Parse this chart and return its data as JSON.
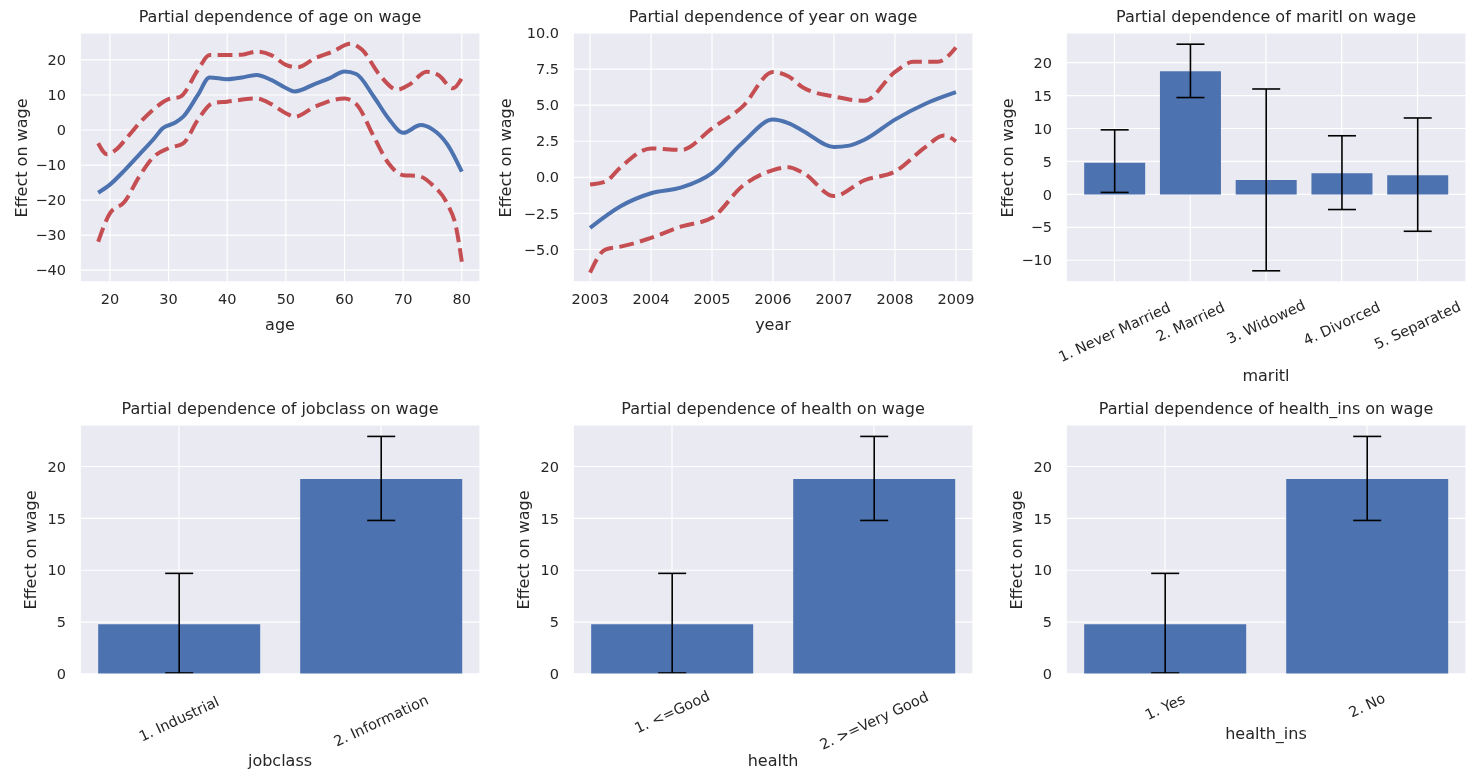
{
  "chart_data": [
    {
      "type": "line",
      "title": "Partial dependence of age on wage",
      "xlabel": "age",
      "ylabel": "Effect on wage",
      "xlim": [
        14.9,
        83.1
      ],
      "ylim": [
        -43.4,
        27.7
      ],
      "xticks": [
        20,
        30,
        40,
        50,
        60,
        70,
        80
      ],
      "yticks": [
        {
          "value": -40,
          "label": "−40"
        },
        {
          "value": -30,
          "label": "−30"
        },
        {
          "value": -20,
          "label": "−20"
        },
        {
          "value": -10,
          "label": "−10"
        },
        0,
        10,
        20
      ],
      "grid": true,
      "series": [
        {
          "color": "#4c72b0",
          "line_style": "solid",
          "x": [
            18,
            20,
            22.5,
            25,
            27.5,
            29,
            31,
            32.5,
            35,
            37,
            40,
            42.5,
            45,
            47.5,
            50,
            51.5,
            55,
            57.5,
            60,
            62,
            65,
            67.5,
            70,
            73,
            75,
            77.5,
            80
          ],
          "values": [
            -17.9,
            -15.6,
            -11.5,
            -7.0,
            -2.5,
            0.5,
            2.0,
            3.8,
            10.0,
            15.0,
            14.5,
            15.0,
            15.7,
            14.3,
            12.0,
            11.0,
            13.2,
            14.8,
            16.7,
            16.0,
            9.5,
            3.3,
            -0.8,
            1.4,
            0.2,
            -4.0,
            -11.9
          ]
        },
        {
          "color": "#c44e52",
          "line_style": "dashed",
          "x": [
            18,
            19.5,
            21,
            23,
            25,
            27.5,
            30,
            32,
            35,
            37,
            40,
            42.5,
            45,
            47.5,
            50,
            52,
            55,
            58,
            61,
            63,
            66,
            69,
            71,
            74,
            76,
            78.5,
            80
          ],
          "values": [
            -3.8,
            -6.9,
            -5.7,
            -2.0,
            1.9,
            6.0,
            8.8,
            9.5,
            17.1,
            21.4,
            21.4,
            21.5,
            22.4,
            21.4,
            18.6,
            17.9,
            20.5,
            22.4,
            24.6,
            22.9,
            15.7,
            11.5,
            12.9,
            16.6,
            15.7,
            11.9,
            14.8
          ]
        },
        {
          "color": "#c44e52",
          "line_style": "dashed",
          "x": [
            18,
            20,
            22.5,
            25,
            27.5,
            30,
            32.5,
            35,
            37.5,
            40,
            45,
            47.5,
            50,
            51.5,
            55,
            60,
            62,
            65,
            67.5,
            70,
            72.5,
            75,
            77.5,
            79,
            80
          ],
          "values": [
            -31.9,
            -23.8,
            -20.5,
            -13.3,
            -7.6,
            -5.2,
            -3.8,
            2.9,
            7.6,
            8.1,
            9.0,
            7.4,
            4.8,
            3.8,
            6.7,
            9.0,
            7.4,
            -1.9,
            -9.5,
            -12.9,
            -13.1,
            -15.7,
            -21.0,
            -27.6,
            -37.6
          ]
        }
      ]
    },
    {
      "type": "line",
      "title": "Partial dependence of year on wage",
      "xlabel": "year",
      "ylabel": "Effect on wage",
      "xlim": [
        2002.72,
        2009.28
      ],
      "ylim": [
        -7.25,
        10.0
      ],
      "xticks": [
        2003,
        2004,
        2005,
        2006,
        2007,
        2008,
        2009
      ],
      "yticks": [
        {
          "value": -5,
          "label": "−5.0"
        },
        {
          "value": -2.5,
          "label": "−2.5"
        },
        {
          "value": 0,
          "label": "0.0"
        },
        2.5,
        {
          "value": 5,
          "label": "5.0"
        },
        7.5,
        {
          "value": 10,
          "label": "10.0"
        }
      ],
      "grid": true,
      "series": [
        {
          "color": "#4c72b0",
          "line_style": "solid",
          "x": [
            2003,
            2003.5,
            2004,
            2004.5,
            2005,
            2005.5,
            2006,
            2006.25,
            2006.5,
            2007,
            2007.25,
            2007.5,
            2008,
            2008.5,
            2009
          ],
          "values": [
            -3.5,
            -2.0,
            -1.1,
            -0.7,
            0.3,
            2.4,
            4.0,
            3.75,
            3.2,
            2.1,
            2.2,
            2.6,
            4.0,
            5.1,
            5.9
          ]
        },
        {
          "color": "#c44e52",
          "line_style": "dashed",
          "x": [
            2003,
            2003.25,
            2003.5,
            2004,
            2004.5,
            2005,
            2005.5,
            2006,
            2006.25,
            2006.5,
            2007,
            2007.5,
            2008,
            2008.3,
            2008.7,
            2009
          ],
          "values": [
            -0.5,
            -0.3,
            0.7,
            2.0,
            1.9,
            3.4,
            4.9,
            7.3,
            7.0,
            6.2,
            5.6,
            5.3,
            7.3,
            8.0,
            8.0,
            9.0
          ]
        },
        {
          "color": "#c44e52",
          "line_style": "dashed",
          "x": [
            2003,
            2003.25,
            2003.5,
            2004,
            2004.5,
            2005,
            2005.5,
            2006,
            2006.25,
            2006.5,
            2007,
            2007.5,
            2008,
            2008.5,
            2008.8,
            2009
          ],
          "values": [
            -6.6,
            -5.0,
            -4.8,
            -4.2,
            -3.4,
            -2.8,
            -0.6,
            0.5,
            0.7,
            0.3,
            -1.3,
            -0.2,
            0.4,
            2.1,
            2.9,
            2.5
          ]
        }
      ]
    },
    {
      "type": "bar",
      "title": "Partial dependence of maritl on wage",
      "xlabel": "maritl",
      "ylabel": "Effect on wage",
      "categories": [
        "1. Never Married",
        "2. Married",
        "3. Widowed",
        "4. Divorced",
        "5. Separated"
      ],
      "values": [
        4.8,
        18.7,
        2.2,
        3.2,
        2.9
      ],
      "errors": [
        [
          0.3,
          9.8
        ],
        [
          14.7,
          22.8
        ],
        [
          -11.6,
          16.0
        ],
        [
          -2.3,
          8.9
        ],
        [
          -5.6,
          11.6
        ]
      ],
      "color": "#4c72b0",
      "ylim": [
        -13.3,
        24.5
      ],
      "yticks": [
        {
          "value": -10,
          "label": "−10"
        },
        {
          "value": -5,
          "label": "−5"
        },
        0,
        5,
        10,
        15,
        20
      ],
      "grid": true
    },
    {
      "type": "bar",
      "title": "Partial dependence of jobclass on wage",
      "xlabel": "jobclass",
      "ylabel": "Effect on wage",
      "categories": [
        "1. Industrial",
        "2. Information"
      ],
      "values": [
        4.8,
        18.8
      ],
      "errors": [
        [
          0.1,
          9.7
        ],
        [
          14.8,
          22.9
        ]
      ],
      "color": "#4c72b0",
      "ylim": [
        0,
        24.0
      ],
      "yticks": [
        0,
        5,
        10,
        15,
        20
      ],
      "grid": true
    },
    {
      "type": "bar",
      "title": "Partial dependence of health on wage",
      "xlabel": "health",
      "ylabel": "Effect on wage",
      "categories": [
        "1. <=Good",
        "2. >=Very Good"
      ],
      "values": [
        4.8,
        18.8
      ],
      "errors": [
        [
          0.1,
          9.7
        ],
        [
          14.8,
          22.9
        ]
      ],
      "color": "#4c72b0",
      "ylim": [
        0,
        24.0
      ],
      "yticks": [
        0,
        5,
        10,
        15,
        20
      ],
      "grid": true
    },
    {
      "type": "bar",
      "title": "Partial dependence of health_ins on wage",
      "xlabel": "health_ins",
      "ylabel": "Effect on wage",
      "categories": [
        "1. Yes",
        "2. No"
      ],
      "values": [
        4.8,
        18.8
      ],
      "errors": [
        [
          0.1,
          9.7
        ],
        [
          14.8,
          22.9
        ]
      ],
      "color": "#4c72b0",
      "ylim": [
        0,
        24.0
      ],
      "yticks": [
        0,
        5,
        10,
        15,
        20
      ],
      "grid": true
    }
  ]
}
